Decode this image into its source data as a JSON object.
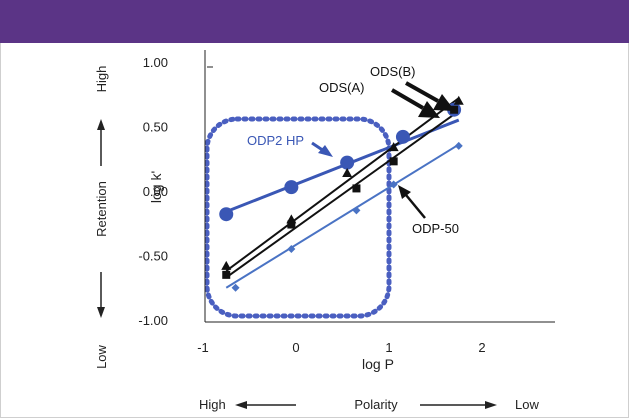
{
  "colors": {
    "header": "#5b3486",
    "blue_series": "#3a57b5",
    "black_series": "#111111",
    "lightblue_series": "#4a73c4",
    "dotted_box": "#4a5fc0",
    "axis": "#222222",
    "grid": "#cccccc"
  },
  "chart_data": {
    "type": "scatter",
    "xlabel": "log P",
    "ylabel": "log k'",
    "xlim": [
      -1,
      2.6
    ],
    "ylim": [
      -1.0,
      1.0
    ],
    "x_ticks": [
      "-1",
      "0",
      "1",
      "2"
    ],
    "y_ticks": [
      "1.00",
      "0.50",
      "0.00",
      "-0.50",
      "-1.00"
    ],
    "grid": false,
    "left_annotation": {
      "top": "High",
      "middle": "Retention",
      "bottom": "Low"
    },
    "bottom_annotation": {
      "left": "High",
      "middle": "Polarity",
      "right": "Low"
    },
    "series": [
      {
        "name": "ODP2 HP",
        "marker": "circle",
        "points": [
          [
            -0.75,
            -0.18
          ],
          [
            -0.05,
            0.03
          ],
          [
            0.55,
            0.22
          ],
          [
            1.15,
            0.42
          ],
          [
            1.7,
            0.63
          ]
        ],
        "fit": [
          [
            -0.75,
            -0.16
          ],
          [
            1.75,
            0.55
          ]
        ]
      },
      {
        "name": "ODS(A)",
        "marker": "triangle",
        "points": [
          [
            -0.75,
            -0.58
          ],
          [
            -0.05,
            -0.22
          ],
          [
            0.55,
            0.14
          ],
          [
            1.05,
            0.34
          ],
          [
            1.75,
            0.7
          ]
        ],
        "fit": [
          [
            -0.75,
            -0.62
          ],
          [
            1.75,
            0.72
          ]
        ]
      },
      {
        "name": "ODS(B)",
        "marker": "square",
        "points": [
          [
            -0.75,
            -0.65
          ],
          [
            -0.05,
            -0.26
          ],
          [
            0.65,
            0.02
          ],
          [
            1.05,
            0.23
          ],
          [
            1.7,
            0.63
          ]
        ],
        "fit": [
          [
            -0.75,
            -0.67
          ],
          [
            1.75,
            0.62
          ]
        ]
      },
      {
        "name": "ODP-50",
        "marker": "diamond",
        "points": [
          [
            -0.65,
            -0.75
          ],
          [
            -0.05,
            -0.45
          ],
          [
            0.65,
            -0.15
          ],
          [
            1.05,
            0.05
          ],
          [
            1.75,
            0.35
          ]
        ],
        "fit": [
          [
            -0.75,
            -0.75
          ],
          [
            1.75,
            0.36
          ]
        ]
      }
    ],
    "annotations": [
      "ODP2 HP",
      "ODS(A)",
      "ODS(B)",
      "ODP-50"
    ]
  }
}
